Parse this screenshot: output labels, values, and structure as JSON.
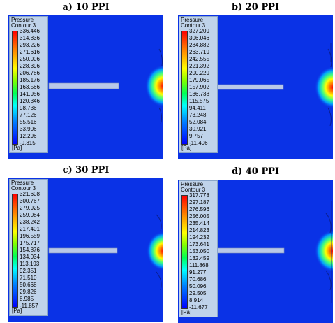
{
  "panels": [
    {
      "title": "a) 10 PPI",
      "legend_title_1": "Pressure",
      "legend_title_2": "Contour 3",
      "ticks": [
        "336.446",
        "314.836",
        "293.226",
        "271.616",
        "250.006",
        "228.396",
        "206.786",
        "185.176",
        "163.566",
        "141.956",
        "120.346",
        "98.736",
        "77.126",
        "55.516",
        "33.906",
        "12.296",
        "-9.315"
      ],
      "unit": "[Pa]"
    },
    {
      "title": "b) 20 PPI",
      "legend_title_1": "Pressure",
      "legend_title_2": "Contour 3",
      "ticks": [
        "327.209",
        "306.046",
        "284.882",
        "263.719",
        "242.555",
        "221.392",
        "200.229",
        "179.065",
        "157.902",
        "136.738",
        "115.575",
        "94.411",
        "73.248",
        "52.084",
        "30.921",
        "9.757",
        "-11.406"
      ],
      "unit": "[Pa]"
    },
    {
      "title": "c) 30 PPI",
      "legend_title_1": "Pressure",
      "legend_title_2": "Contour 3",
      "ticks": [
        "321.608",
        "300.767",
        "279.925",
        "259.084",
        "238.242",
        "217.401",
        "196.559",
        "175.717",
        "154.876",
        "134.034",
        "113.193",
        "92.351",
        "71.510",
        "50.668",
        "29.826",
        "8.985",
        "-11.857"
      ],
      "unit": "[Pa]"
    },
    {
      "title": "d) 40 PPI",
      "legend_title_1": "Pressure",
      "legend_title_2": "Contour 3",
      "ticks": [
        "317.778",
        "297.187",
        "276.596",
        "256.005",
        "235.414",
        "214.823",
        "194.232",
        "173.641",
        "153.050",
        "132.459",
        "111.868",
        "91.277",
        "70.686",
        "50.096",
        "29.505",
        "8.914",
        "-11.677"
      ],
      "unit": "[Pa]"
    }
  ]
}
